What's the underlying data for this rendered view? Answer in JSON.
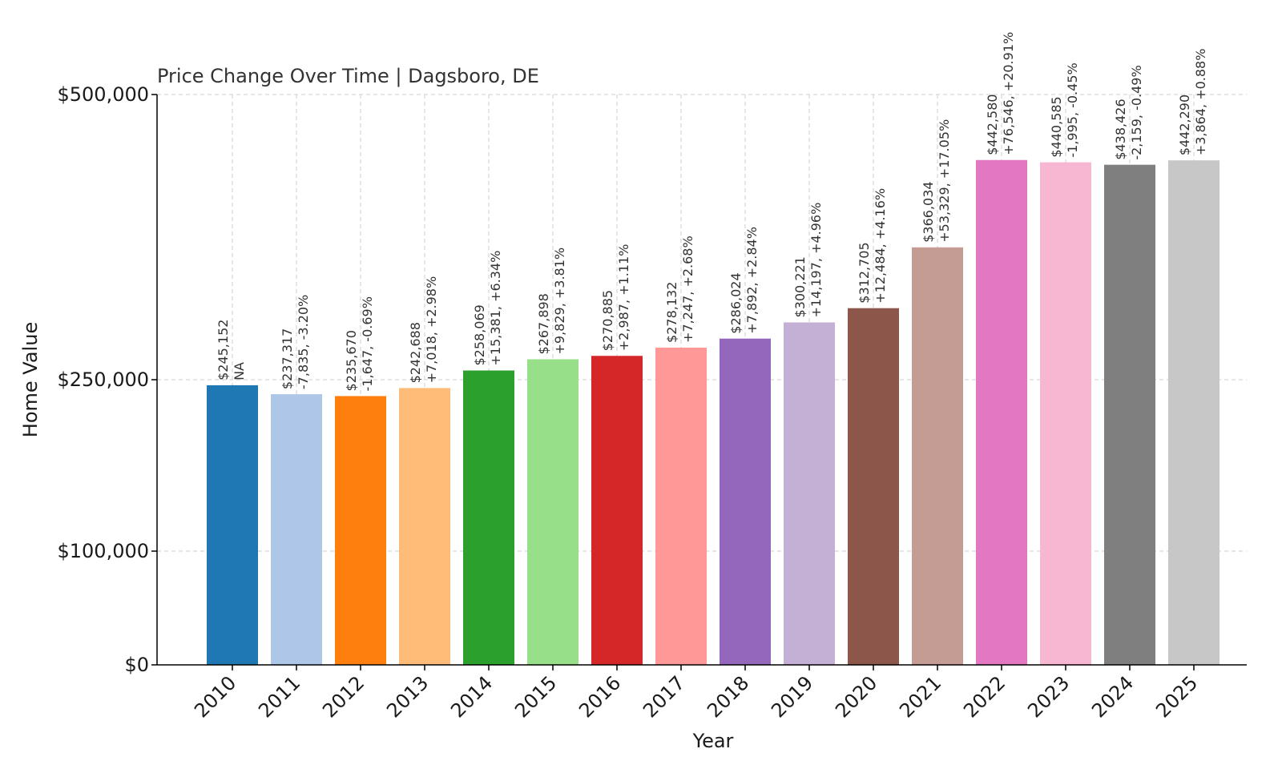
{
  "chart_data": {
    "type": "bar",
    "title": "Price Change Over Time | Dagsboro, DE",
    "xlabel": "Year",
    "ylabel": "Home Value",
    "y_ticks": [
      {
        "value": 0,
        "label": "$0"
      },
      {
        "value": 100000,
        "label": "$100,000"
      },
      {
        "value": 250000,
        "label": "$250,000"
      },
      {
        "value": 500000,
        "label": "$500,000"
      }
    ],
    "ylim": [
      0,
      500000
    ],
    "grid": true,
    "categories": [
      "2010",
      "2011",
      "2012",
      "2013",
      "2014",
      "2015",
      "2016",
      "2017",
      "2018",
      "2019",
      "2020",
      "2021",
      "2022",
      "2023",
      "2024",
      "2025"
    ],
    "values": [
      245152,
      237317,
      235670,
      242688,
      258069,
      267898,
      270885,
      278132,
      286024,
      300221,
      312705,
      366034,
      442580,
      440585,
      438426,
      442290
    ],
    "value_labels": [
      "$245,152",
      "$237,317",
      "$235,670",
      "$242,688",
      "$258,069",
      "$267,898",
      "$270,885",
      "$278,132",
      "$286,024",
      "$300,221",
      "$312,705",
      "$366,034",
      "$442,580",
      "$440,585",
      "$438,426",
      "$442,290"
    ],
    "change_labels": [
      "NA",
      "-7,835, -3.20%",
      "-1,647, -0.69%",
      "+7,018, +2.98%",
      "+15,381, +6.34%",
      "+9,829, +3.81%",
      "+2,987, +1.11%",
      "+7,247, +2.68%",
      "+7,892, +2.84%",
      "+14,197, +4.96%",
      "+12,484, +4.16%",
      "+53,329, +17.05%",
      "+76,546, +20.91%",
      "-1,995, -0.45%",
      "-2,159, -0.49%",
      "+3,864, +0.88%"
    ],
    "colors": [
      "#1f77b4",
      "#aec7e8",
      "#ff7f0e",
      "#ffbb78",
      "#2ca02c",
      "#98df8a",
      "#d62728",
      "#ff9896",
      "#9467bd",
      "#c5b0d5",
      "#8c564b",
      "#c49c94",
      "#e377c2",
      "#f7b6d2",
      "#7f7f7f",
      "#c7c7c7"
    ]
  }
}
